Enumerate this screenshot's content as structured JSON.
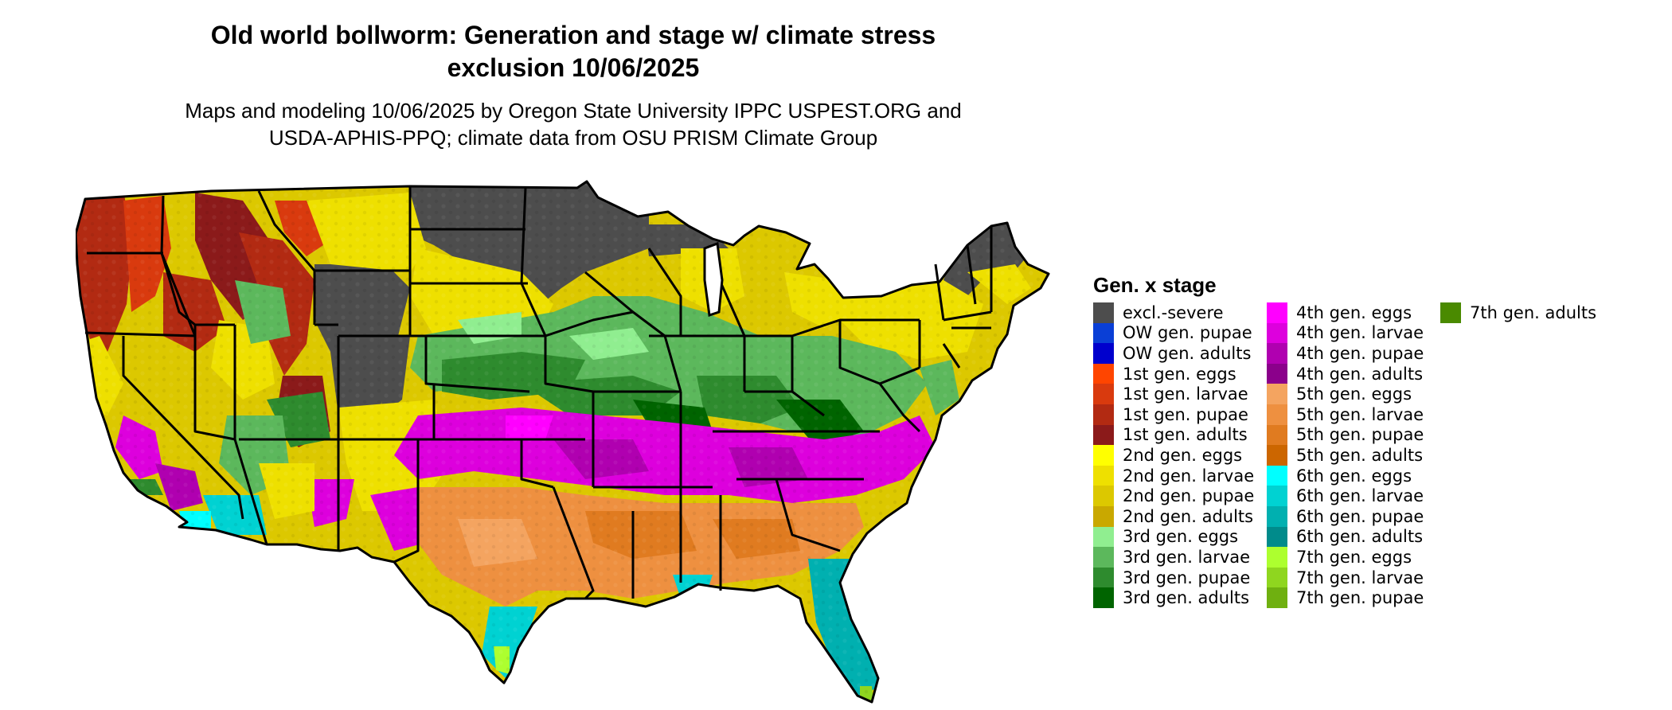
{
  "title_line1": "Old world bollworm: Generation and stage w/ climate stress",
  "title_line2": "exclusion 10/06/2025",
  "subtitle_line1": "Maps and modeling 10/06/2025 by Oregon State University IPPC USPEST.ORG and",
  "subtitle_line2": "USDA-APHIS-PPQ; climate data from OSU PRISM Climate Group",
  "legend": {
    "title": "Gen. x stage",
    "items": [
      {
        "label": "excl.-severe",
        "color": "#4d4d4d"
      },
      {
        "label": "OW gen. pupae",
        "color": "#0a3fd6"
      },
      {
        "label": "OW gen. adults",
        "color": "#0000cd"
      },
      {
        "label": "1st gen. eggs",
        "color": "#ff4500"
      },
      {
        "label": "1st gen. larvae",
        "color": "#d93a0e"
      },
      {
        "label": "1st gen. pupae",
        "color": "#b22a12"
      },
      {
        "label": "1st gen. adults",
        "color": "#8b1a1a"
      },
      {
        "label": "2nd gen. eggs",
        "color": "#ffff00"
      },
      {
        "label": "2nd gen. larvae",
        "color": "#eee000"
      },
      {
        "label": "2nd gen. pupae",
        "color": "#dcc800"
      },
      {
        "label": "2nd gen. adults",
        "color": "#c9a800"
      },
      {
        "label": "3rd gen. eggs",
        "color": "#90ee90"
      },
      {
        "label": "3rd gen. larvae",
        "color": "#5cb85c"
      },
      {
        "label": "3rd gen. pupae",
        "color": "#2e8b2e"
      },
      {
        "label": "3rd gen. adults",
        "color": "#006400"
      },
      {
        "label": "4th gen. eggs",
        "color": "#ff00ff"
      },
      {
        "label": "4th gen. larvae",
        "color": "#dd00dd"
      },
      {
        "label": "4th gen. pupae",
        "color": "#b000b0"
      },
      {
        "label": "4th gen. adults",
        "color": "#8b008b"
      },
      {
        "label": "5th gen. eggs",
        "color": "#f4a460"
      },
      {
        "label": "5th gen. larvae",
        "color": "#ee9040"
      },
      {
        "label": "5th gen. pupae",
        "color": "#e07b20"
      },
      {
        "label": "5th gen. adults",
        "color": "#cc6600"
      },
      {
        "label": "6th gen. eggs",
        "color": "#00ffff"
      },
      {
        "label": "6th gen. larvae",
        "color": "#00d2d2"
      },
      {
        "label": "6th gen. pupae",
        "color": "#00b0b0"
      },
      {
        "label": "6th gen. adults",
        "color": "#008b8b"
      },
      {
        "label": "7th gen. eggs",
        "color": "#adff2f"
      },
      {
        "label": "7th gen. larvae",
        "color": "#8fd61f"
      },
      {
        "label": "7th gen. pupae",
        "color": "#6fb010"
      },
      {
        "label": "7th gen. adults",
        "color": "#4a8a00"
      }
    ]
  }
}
